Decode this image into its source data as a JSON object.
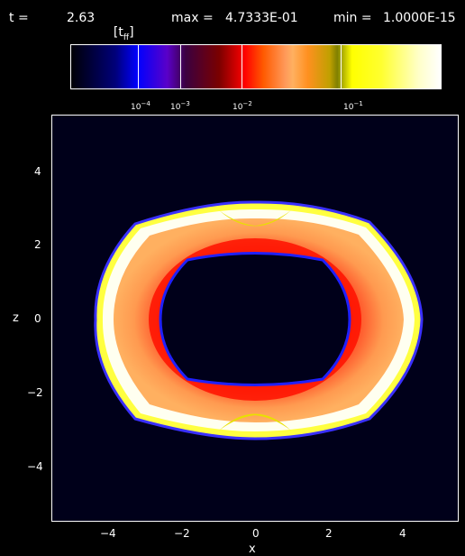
{
  "header": {
    "time_label": "t =",
    "time_value": "2.63",
    "time_unit": "[t",
    "time_unit_sub": "ff",
    "time_unit_close": "]",
    "max_label": "max =",
    "max_value": "4.7333E-01",
    "min_label": "min =",
    "min_value": "1.0000E-15"
  },
  "colorbar": {
    "tick_labels": [
      {
        "base": "10",
        "exp": "−4"
      },
      {
        "base": "10",
        "exp": "−3"
      },
      {
        "base": "10",
        "exp": "−2"
      },
      {
        "base": "10",
        "exp": "−1"
      }
    ],
    "colors": [
      "#000000",
      "#0000ff",
      "#ff0000",
      "#ffff00",
      "#ffffff"
    ]
  },
  "plot": {
    "xlabel": "x",
    "ylabel": "z",
    "xticks": [
      "−4",
      "−2",
      "0",
      "2",
      "4"
    ],
    "yticks": [
      "4",
      "2",
      "0",
      "−2",
      "−4"
    ],
    "xlim": [
      -5.5,
      5.5
    ],
    "ylim": [
      -5.5,
      5.5
    ],
    "background": "#00001a"
  }
}
